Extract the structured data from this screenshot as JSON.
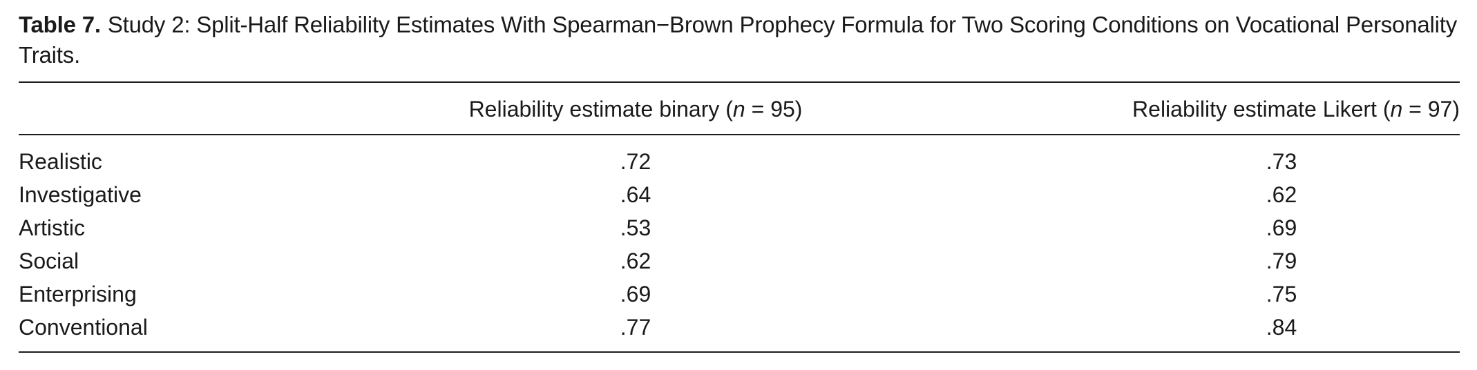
{
  "caption": {
    "label": "Table 7.",
    "text": "Study 2: Split-Half Reliability Estimates With Spearman−Brown Prophecy Formula for Two Scoring Conditions on Vocational Personality Traits."
  },
  "columns": {
    "binary": {
      "prefix": "Reliability estimate binary (",
      "n_symbol": "n",
      "n_value": " = 95)"
    },
    "likert": {
      "prefix": "Reliability estimate Likert (",
      "n_symbol": "n",
      "n_value": " = 97)"
    }
  },
  "rows": [
    {
      "trait": "Realistic",
      "binary": ".72",
      "likert": ".73"
    },
    {
      "trait": "Investigative",
      "binary": ".64",
      "likert": ".62"
    },
    {
      "trait": "Artistic",
      "binary": ".53",
      "likert": ".69"
    },
    {
      "trait": "Social",
      "binary": ".62",
      "likert": ".79"
    },
    {
      "trait": "Enterprising",
      "binary": ".69",
      "likert": ".75"
    },
    {
      "trait": "Conventional",
      "binary": ".77",
      "likert": ".84"
    }
  ]
}
